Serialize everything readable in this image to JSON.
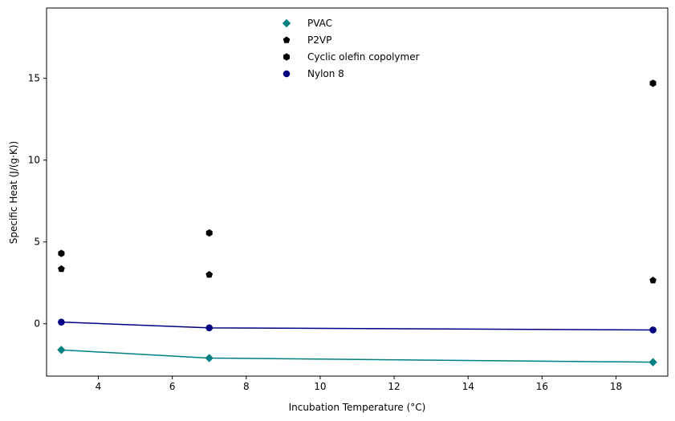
{
  "chart_data": {
    "type": "scatter",
    "title": "",
    "xlabel": "Incubation Temperature (°C)",
    "ylabel": "Specific Heat (J/(g·K))",
    "xlim": [
      2.6,
      19.4
    ],
    "ylim": [
      -3.2,
      19.3
    ],
    "xticks": [
      4,
      6,
      8,
      10,
      12,
      14,
      16,
      18
    ],
    "yticks": [
      0,
      5,
      10,
      15
    ],
    "legend_position": "upper-center",
    "grid": false,
    "series": [
      {
        "name": "PVAC",
        "marker": "diamond",
        "color": "#008080",
        "line": true,
        "x": [
          3,
          7,
          19
        ],
        "y": [
          -1.6,
          -2.1,
          -2.35
        ]
      },
      {
        "name": "P2VP",
        "marker": "pentagon",
        "color": "#000000",
        "line": false,
        "x": [
          3,
          7,
          19
        ],
        "y": [
          3.35,
          3.0,
          2.65
        ]
      },
      {
        "name": "Cyclic olefin copolymer",
        "marker": "hexagon",
        "color": "#000000",
        "line": false,
        "x": [
          3,
          7,
          19
        ],
        "y": [
          4.3,
          5.55,
          14.7
        ]
      },
      {
        "name": "Nylon 8",
        "marker": "circle",
        "color": "#000080",
        "line": true,
        "x": [
          3,
          7,
          19
        ],
        "y": [
          0.1,
          -0.25,
          -0.38
        ]
      }
    ]
  }
}
